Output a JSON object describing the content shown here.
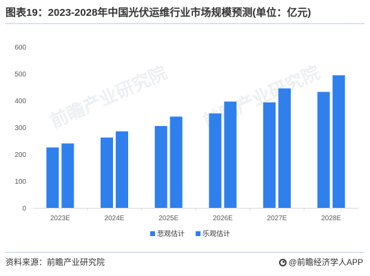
{
  "title": "图表19：2023-2028年中国光伏运维行业市场规模预测(单位：亿元)",
  "source": "资料来源：前瞻产业研究院",
  "brand": "@前瞻经济学人APP",
  "watermark": "前瞻产业研究院",
  "colors": {
    "pessimistic": "#2f80ed",
    "optimistic": "#2f80ed",
    "axis": "#d9d9d9",
    "grid": "#ebebeb",
    "tick_text": "#595959",
    "watermark": "#dfe3e8"
  },
  "chart_data": {
    "type": "bar",
    "title": "图表19：2023-2028年中国光伏运维行业市场规模预测(单位：亿元)",
    "categories": [
      "2023E",
      "2024E",
      "2025E",
      "2026E",
      "2027E",
      "2028E"
    ],
    "series": [
      {
        "name": "悲观估计",
        "values": [
          225,
          262,
          305,
          352,
          393,
          432
        ]
      },
      {
        "name": "乐观估计",
        "values": [
          240,
          285,
          340,
          396,
          445,
          494
        ]
      }
    ],
    "ylim": [
      0,
      600
    ],
    "yticks": [
      0,
      100,
      200,
      300,
      400,
      500,
      600
    ],
    "xlabel": "",
    "ylabel": "",
    "grid": false,
    "legend": "bottom-center"
  }
}
